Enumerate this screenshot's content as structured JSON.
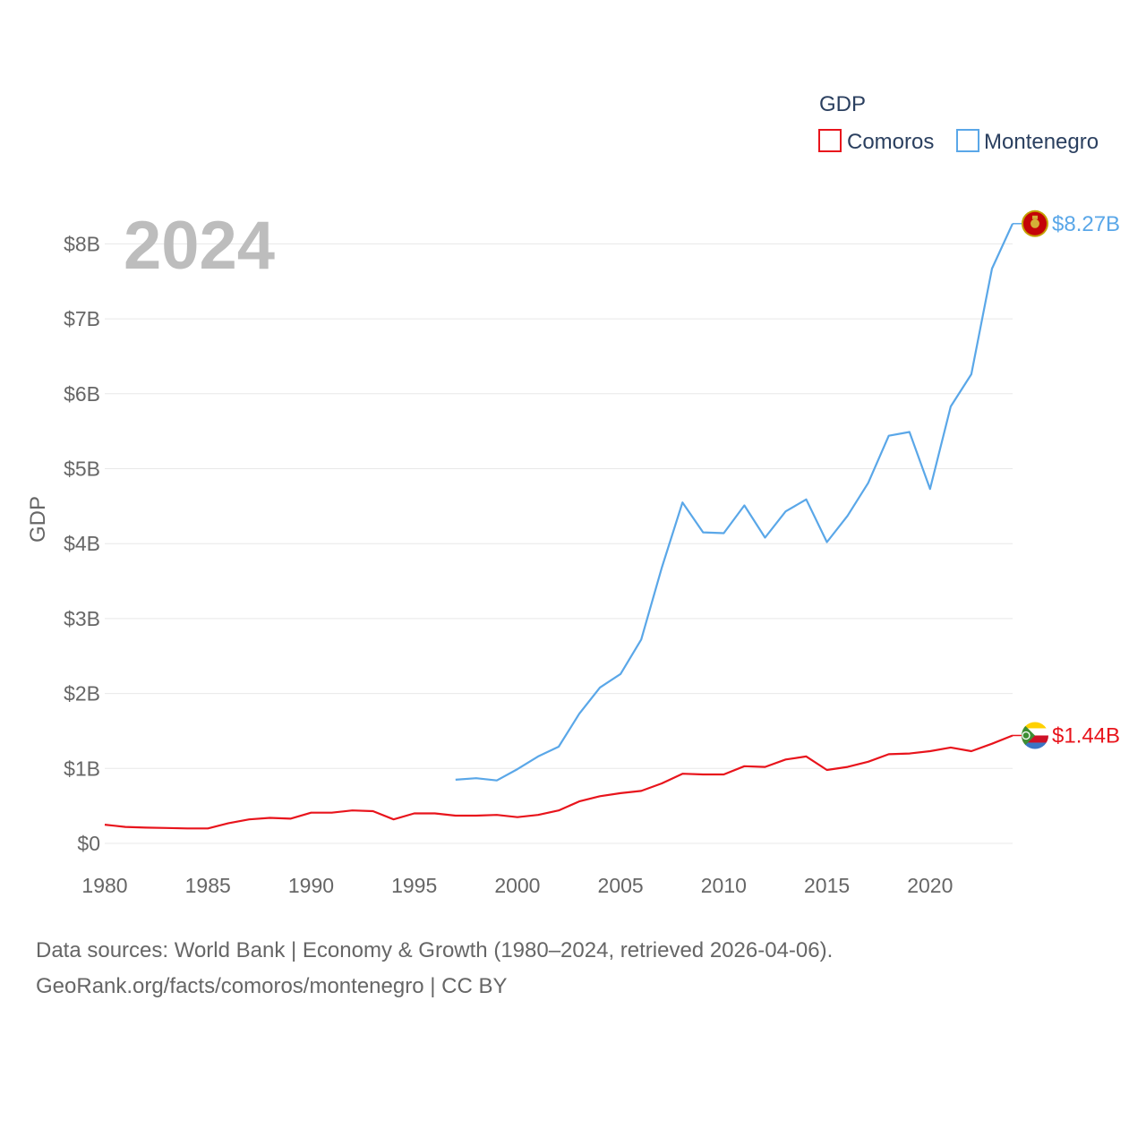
{
  "chart_data": {
    "type": "line",
    "title": "",
    "ylabel": "GDP",
    "xlabel": "",
    "xlim": [
      1980,
      2024
    ],
    "ylim": [
      0,
      8.6
    ],
    "y_unit": "billions USD",
    "year_watermark": "2024",
    "legend": {
      "title": "GDP",
      "placement": "top-right"
    },
    "x_ticks": [
      1980,
      1985,
      1990,
      1995,
      2000,
      2005,
      2010,
      2015,
      2020
    ],
    "x_tick_labels": [
      "1980",
      "1985",
      "1990",
      "1995",
      "2000",
      "2005",
      "2010",
      "2015",
      "2020"
    ],
    "y_ticks": [
      0,
      1,
      2,
      3,
      4,
      5,
      6,
      7,
      8
    ],
    "y_tick_labels": [
      "$0",
      "$1B",
      "$2B",
      "$3B",
      "$4B",
      "$5B",
      "$6B",
      "$7B",
      "$8B"
    ],
    "series": [
      {
        "name": "Comoros",
        "color": "#e8141c",
        "end_label": "$1.44B",
        "flag": "comoros-flag",
        "x": [
          1980,
          1981,
          1982,
          1983,
          1984,
          1985,
          1986,
          1987,
          1988,
          1989,
          1990,
          1991,
          1992,
          1993,
          1994,
          1995,
          1996,
          1997,
          1998,
          1999,
          2000,
          2001,
          2002,
          2003,
          2004,
          2005,
          2006,
          2007,
          2008,
          2009,
          2010,
          2011,
          2012,
          2013,
          2014,
          2015,
          2016,
          2017,
          2018,
          2019,
          2020,
          2021,
          2022,
          2023,
          2024
        ],
        "values": [
          0.25,
          0.22,
          0.21,
          0.205,
          0.2,
          0.2,
          0.27,
          0.32,
          0.34,
          0.33,
          0.41,
          0.41,
          0.44,
          0.43,
          0.32,
          0.4,
          0.4,
          0.37,
          0.37,
          0.38,
          0.35,
          0.38,
          0.44,
          0.56,
          0.63,
          0.67,
          0.7,
          0.8,
          0.93,
          0.92,
          0.92,
          1.03,
          1.02,
          1.12,
          1.16,
          0.98,
          1.02,
          1.09,
          1.19,
          1.2,
          1.23,
          1.28,
          1.23,
          1.33,
          1.44
        ]
      },
      {
        "name": "Montenegro",
        "color": "#5aa7e8",
        "end_label": "$8.27B",
        "flag": "montenegro-flag",
        "x": [
          1997,
          1998,
          1999,
          2000,
          2001,
          2002,
          2003,
          2004,
          2005,
          2006,
          2007,
          2008,
          2009,
          2010,
          2011,
          2012,
          2013,
          2014,
          2015,
          2016,
          2017,
          2018,
          2019,
          2020,
          2021,
          2022,
          2023,
          2024
        ],
        "values": [
          0.85,
          0.87,
          0.84,
          0.99,
          1.16,
          1.29,
          1.73,
          2.08,
          2.26,
          2.72,
          3.68,
          4.55,
          4.15,
          4.14,
          4.51,
          4.08,
          4.43,
          4.59,
          4.02,
          4.37,
          4.81,
          5.44,
          5.49,
          4.73,
          5.83,
          6.26,
          7.67,
          8.27
        ]
      }
    ]
  },
  "footer": {
    "line1": "Data sources: World Bank | Economy & Growth (1980–2024, retrieved 2026-04-06).",
    "line2": "GeoRank.org/facts/comoros/montenegro | CC BY"
  },
  "colors": {
    "comoros": "#e8141c",
    "montenegro": "#5aa7e8",
    "grid": "#e8e8e8",
    "text": "#666666"
  }
}
